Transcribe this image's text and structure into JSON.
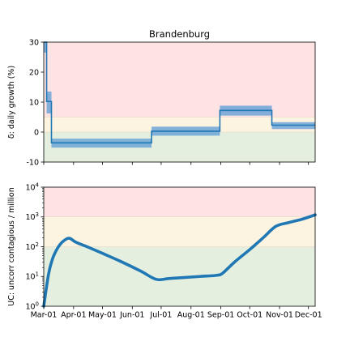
{
  "chart_data": [
    {
      "type": "line",
      "title": "Brandenburg",
      "ylabel": "δ: daily growth (%)",
      "xlabel": "",
      "ylim": [
        -10,
        30
      ],
      "yticks": [
        -10,
        0,
        10,
        20,
        30
      ],
      "grid": false,
      "bands": [
        {
          "from": -10,
          "to": 0,
          "color": "#e5efe0"
        },
        {
          "from": 0,
          "to": 5,
          "color": "#fdf3e1"
        },
        {
          "from": 5,
          "to": 30,
          "color": "#fde3e3"
        }
      ],
      "series": [
        {
          "style": "step",
          "color": "#1f77b4",
          "band_color": "#5b9bd5",
          "x": [
            "2020-03-01",
            "2020-03-04",
            "2020-03-04",
            "2020-03-09",
            "2020-03-09",
            "2020-06-21",
            "2020-06-21",
            "2020-08-31",
            "2020-08-31",
            "2020-10-24",
            "2020-10-24",
            "2020-12-08"
          ],
          "values": [
            30,
            30,
            10.2,
            10.2,
            -3.6,
            -3.6,
            0.3,
            0.3,
            7.2,
            7.2,
            2.3,
            2.3
          ],
          "lower": [
            26.5,
            26.5,
            6.2,
            6.2,
            -5.2,
            -5.2,
            -1.2,
            -1.2,
            5.5,
            5.5,
            1.0,
            1.0
          ],
          "upper": [
            30,
            30,
            13.5,
            13.5,
            -2.2,
            -2.2,
            1.8,
            1.8,
            8.8,
            8.8,
            3.3,
            3.3
          ]
        }
      ]
    },
    {
      "type": "line",
      "title": "",
      "ylabel": "UC: uncorr contagious / million",
      "xlabel": "",
      "yscale": "log",
      "ylim": [
        1,
        10000
      ],
      "yticks": [
        1,
        10,
        100,
        1000,
        10000
      ],
      "ytick_labels": [
        {
          "base": "10",
          "exp": "0"
        },
        {
          "base": "10",
          "exp": "1"
        },
        {
          "base": "10",
          "exp": "2"
        },
        {
          "base": "10",
          "exp": "3"
        },
        {
          "base": "10",
          "exp": "4"
        }
      ],
      "grid": false,
      "bands": [
        {
          "from": 1,
          "to": 100,
          "color": "#e5efe0"
        },
        {
          "from": 100,
          "to": 1000,
          "color": "#fdf3e1"
        },
        {
          "from": 1000,
          "to": 10000,
          "color": "#fde3e3"
        }
      ],
      "categories": [
        "Mar-01",
        "Apr-01",
        "May-01",
        "Jun-01",
        "Jul-01",
        "Aug-01",
        "Sep-01",
        "Oct-01",
        "Nov-01",
        "Dec-01"
      ],
      "xticks": [
        "2020-03-01",
        "2020-04-01",
        "2020-05-01",
        "2020-06-01",
        "2020-07-01",
        "2020-08-01",
        "2020-09-01",
        "2020-10-01",
        "2020-11-01",
        "2020-12-01"
      ],
      "series": [
        {
          "style": "line",
          "color": "#1f77b4",
          "x": [
            "2020-03-01",
            "2020-03-06",
            "2020-03-10",
            "2020-03-14",
            "2020-03-18",
            "2020-03-22",
            "2020-03-26",
            "2020-03-29",
            "2020-04-02",
            "2020-04-06",
            "2020-04-15",
            "2020-05-01",
            "2020-05-20",
            "2020-06-10",
            "2020-06-26",
            "2020-07-10",
            "2020-08-10",
            "2020-08-28",
            "2020-09-03",
            "2020-09-15",
            "2020-10-01",
            "2020-10-15",
            "2020-10-28",
            "2020-11-10",
            "2020-11-25",
            "2020-12-08"
          ],
          "values": [
            1,
            12,
            38,
            75,
            120,
            160,
            190,
            185,
            150,
            130,
            100,
            60,
            32,
            15,
            8,
            8.6,
            10,
            11,
            13,
            30,
            80,
            200,
            480,
            640,
            850,
            1180
          ]
        }
      ]
    }
  ]
}
